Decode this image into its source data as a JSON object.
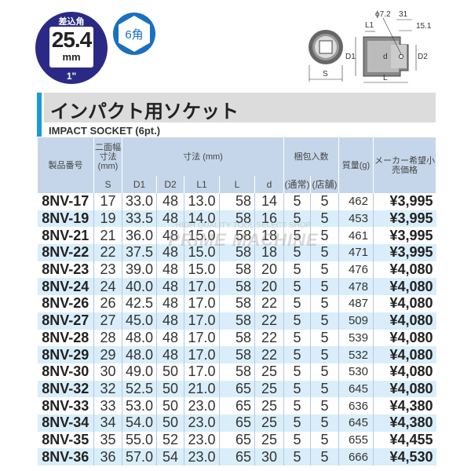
{
  "badge": {
    "top_label": "差込角",
    "size": "25.4",
    "unit": "mm",
    "inch": "1\""
  },
  "hex_badge": {
    "label": "6角"
  },
  "diagram": {
    "phi": "ϕ7.2",
    "dim_31": "31",
    "dim_15_1": "15.1",
    "L1": "L1",
    "D1": "D1",
    "D2": "D2",
    "d": "d",
    "L": "L",
    "S": "S"
  },
  "title": "インパクト用ソケット",
  "subtitle": "IMPACT SOCKET (6pt.)",
  "watermark": {
    "line1": "HIGH QUALITY TOOL SELECT SHOP",
    "line2": "PRIME MACHINE"
  },
  "colors": {
    "badge": "#2a2a86",
    "accent": "#1a9ad6",
    "header": "#c5d6ea",
    "alt_row": "#d9eefa"
  },
  "table": {
    "headers": {
      "part_no": "製品番号",
      "width": "二面幅寸法(mm)",
      "dims": "寸法 (mm)",
      "pack": "梱包入数",
      "mass": "質量(g)",
      "price": "メーカー希望小売価格"
    },
    "subheaders": [
      "S",
      "D1",
      "D2",
      "L1",
      "L",
      "d",
      "(通常)",
      "(店舗)"
    ],
    "rows": [
      [
        "8NV-17",
        "17",
        "33.0",
        "48",
        "13.0",
        "58",
        "14",
        "5",
        "5",
        "462",
        "¥3,995"
      ],
      [
        "8NV-19",
        "19",
        "33.5",
        "48",
        "14.0",
        "58",
        "16",
        "5",
        "5",
        "453",
        "¥3,995"
      ],
      [
        "8NV-21",
        "21",
        "36.0",
        "48",
        "15.0",
        "58",
        "18",
        "5",
        "5",
        "461",
        "¥3,995"
      ],
      [
        "8NV-22",
        "22",
        "37.5",
        "48",
        "15.0",
        "58",
        "18",
        "5",
        "5",
        "471",
        "¥3,995"
      ],
      [
        "8NV-23",
        "23",
        "39.0",
        "48",
        "15.0",
        "58",
        "20",
        "5",
        "5",
        "476",
        "¥4,080"
      ],
      [
        "8NV-24",
        "24",
        "40.0",
        "48",
        "17.0",
        "58",
        "20",
        "5",
        "5",
        "478",
        "¥4,080"
      ],
      [
        "8NV-26",
        "26",
        "42.5",
        "48",
        "17.0",
        "58",
        "22",
        "5",
        "5",
        "487",
        "¥4,080"
      ],
      [
        "8NV-27",
        "27",
        "45.0",
        "48",
        "17.0",
        "58",
        "22",
        "5",
        "5",
        "509",
        "¥4,080"
      ],
      [
        "8NV-28",
        "28",
        "48.0",
        "48",
        "17.0",
        "58",
        "22",
        "5",
        "5",
        "539",
        "¥4,080"
      ],
      [
        "8NV-29",
        "29",
        "48.0",
        "48",
        "17.0",
        "58",
        "22",
        "5",
        "5",
        "532",
        "¥4,080"
      ],
      [
        "8NV-30",
        "30",
        "49.0",
        "50",
        "17.0",
        "58",
        "25",
        "5",
        "5",
        "530",
        "¥4,080"
      ],
      [
        "8NV-32",
        "32",
        "52.5",
        "50",
        "21.0",
        "65",
        "25",
        "5",
        "5",
        "645",
        "¥4,080"
      ],
      [
        "8NV-33",
        "33",
        "53.0",
        "50",
        "23.0",
        "65",
        "25",
        "5",
        "5",
        "636",
        "¥4,380"
      ],
      [
        "8NV-34",
        "34",
        "54.0",
        "50",
        "23.0",
        "65",
        "25",
        "5",
        "5",
        "645",
        "¥4,380"
      ],
      [
        "8NV-35",
        "35",
        "55.0",
        "52",
        "23.0",
        "65",
        "25",
        "5",
        "5",
        "655",
        "¥4,455"
      ],
      [
        "8NV-36",
        "36",
        "57.0",
        "54",
        "23.0",
        "65",
        "30",
        "5",
        "5",
        "666",
        "¥4,530"
      ]
    ]
  }
}
